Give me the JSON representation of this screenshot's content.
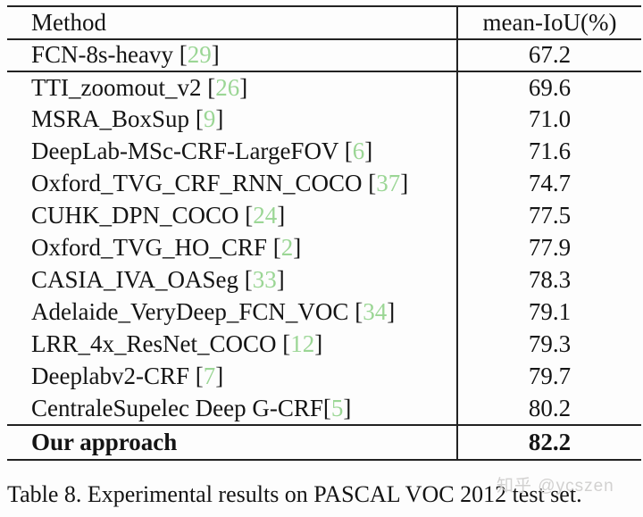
{
  "table": {
    "columns": [
      "Method",
      "mean-IoU(%)"
    ],
    "rows": [
      {
        "method": "FCN-8s-heavy ",
        "cite": "29",
        "value": "67.2",
        "rule_below": true
      },
      {
        "method": "TTI_zoomout_v2 ",
        "cite": "26",
        "value": "69.6"
      },
      {
        "method": "MSRA_BoxSup ",
        "cite": "9",
        "value": "71.0"
      },
      {
        "method": "DeepLab-MSc-CRF-LargeFOV ",
        "cite": "6",
        "value": "71.6"
      },
      {
        "method": "Oxford_TVG_CRF_RNN_COCO ",
        "cite": "37",
        "value": "74.7"
      },
      {
        "method": "CUHK_DPN_COCO ",
        "cite": "24",
        "value": "77.5"
      },
      {
        "method": "Oxford_TVG_HO_CRF ",
        "cite": "2",
        "value": "77.9"
      },
      {
        "method": "CASIA_IVA_OASeg ",
        "cite": "33",
        "value": "78.3"
      },
      {
        "method": "Adelaide_VeryDeep_FCN_VOC ",
        "cite": "34",
        "value": "79.1"
      },
      {
        "method": "LRR_4x_ResNet_COCO ",
        "cite": "12",
        "value": "79.3"
      },
      {
        "method": "Deeplabv2-CRF ",
        "cite": "7",
        "value": "79.7"
      },
      {
        "method": "CentraleSupelec Deep G-CRF",
        "cite": "5",
        "value": "80.2",
        "rule_below": true
      },
      {
        "method": "Our approach",
        "cite": null,
        "value": "82.2",
        "bold": true
      }
    ]
  },
  "caption": "Table 8. Experimental results on PASCAL VOC 2012 test set.",
  "watermark": {
    "text": "知乎 @ycszen"
  },
  "colors": {
    "citation_green": "#9bd695",
    "rule": "#222222",
    "watermark_gray": "#d2d1d0",
    "background": "#fdfdfd"
  }
}
